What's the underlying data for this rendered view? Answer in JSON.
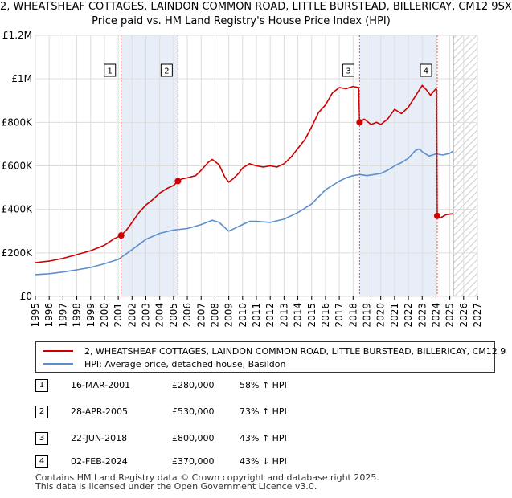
{
  "colors": {
    "price_line": "#cc0000",
    "hpi_line": "#5b8fcc",
    "shade": "#e8eef8",
    "grid": "#dddddd",
    "marker_dash": "#e05050"
  },
  "header": {
    "title_line1": "2, WHEATSHEAF COTTAGES, LAINDON COMMON ROAD, LITTLE BURSTEAD, BILLERICAY, CM12 9SX",
    "title_line2": "Price paid vs. HM Land Registry's House Price Index (HPI)"
  },
  "legend": {
    "price_label": "2, WHEATSHEAF COTTAGES, LAINDON COMMON ROAD, LITTLE BURSTEAD, BILLERICAY, CM12 9",
    "hpi_label": "HPI: Average price, detached house, Basildon"
  },
  "sales": [
    {
      "num": "1",
      "date": "16-MAR-2001",
      "price": "£280,000",
      "hpi": "58% ↑ HPI"
    },
    {
      "num": "2",
      "date": "28-APR-2005",
      "price": "£530,000",
      "hpi": "73% ↑ HPI"
    },
    {
      "num": "3",
      "date": "22-JUN-2018",
      "price": "£800,000",
      "hpi": "43% ↑ HPI"
    },
    {
      "num": "4",
      "date": "02-FEB-2024",
      "price": "£370,000",
      "hpi": "43% ↓ HPI"
    }
  ],
  "footer": {
    "line1": "Contains HM Land Registry data © Crown copyright and database right 2025.",
    "line2": "This data is licensed under the Open Government Licence v3.0."
  },
  "chart_data": {
    "type": "line",
    "title": "Price paid vs. HM Land Registry's House Price Index (HPI)",
    "xlabel": "",
    "ylabel": "",
    "xlim": [
      1995,
      2027
    ],
    "ylim": [
      0,
      1200000
    ],
    "x_ticks": [
      "1995",
      "1996",
      "1997",
      "1998",
      "1999",
      "2000",
      "2001",
      "2002",
      "2003",
      "2004",
      "2005",
      "2006",
      "2007",
      "2008",
      "2009",
      "2010",
      "2011",
      "2012",
      "2013",
      "2014",
      "2015",
      "2016",
      "2017",
      "2018",
      "2019",
      "2020",
      "2021",
      "2022",
      "2023",
      "2024",
      "2025",
      "2026",
      "2027"
    ],
    "y_ticks": [
      {
        "value": 0,
        "label": "£0"
      },
      {
        "value": 200000,
        "label": "£200K"
      },
      {
        "value": 400000,
        "label": "£400K"
      },
      {
        "value": 600000,
        "label": "£600K"
      },
      {
        "value": 800000,
        "label": "£800K"
      },
      {
        "value": 1000000,
        "label": "£1M"
      },
      {
        "value": 1200000,
        "label": "£1.2M"
      }
    ],
    "shaded_ranges": [
      [
        2001.21,
        2005.32
      ],
      [
        2018.47,
        2024.09
      ]
    ],
    "hatched_range": [
      2025.25,
      2027
    ],
    "sale_markers": [
      {
        "label": "1",
        "x": 2001.21,
        "price": 280000
      },
      {
        "label": "2",
        "x": 2005.32,
        "price": 530000
      },
      {
        "label": "3",
        "x": 2018.47,
        "price": 800000
      },
      {
        "label": "4",
        "x": 2024.09,
        "price": 370000
      }
    ],
    "series": [
      {
        "name": "2, WHEATSHEAF COTTAGES, LAINDON COMMON ROAD, LITTLE BURSTEAD, BILLERICAY, CM12 9",
        "x": [
          1995.0,
          1996.0,
          1997.0,
          1998.0,
          1999.0,
          2000.0,
          2000.7,
          2001.21,
          2001.6,
          2002.0,
          2002.5,
          2003.0,
          2003.5,
          2004.0,
          2004.5,
          2005.0,
          2005.32,
          2005.6,
          2006.0,
          2006.6,
          2007.0,
          2007.5,
          2007.8,
          2008.3,
          2008.7,
          2009.0,
          2009.3,
          2009.7,
          2010.0,
          2010.5,
          2011.0,
          2011.5,
          2012.0,
          2012.5,
          2013.0,
          2013.5,
          2014.0,
          2014.5,
          2015.0,
          2015.5,
          2016.0,
          2016.5,
          2017.0,
          2017.5,
          2018.0,
          2018.4,
          2018.47,
          2018.8,
          2019.3,
          2019.7,
          2020.0,
          2020.5,
          2021.0,
          2021.5,
          2022.0,
          2022.5,
          2023.0,
          2023.3,
          2023.6,
          2024.0,
          2024.05,
          2024.09,
          2024.3,
          2024.7,
          2025.0,
          2025.25
        ],
        "values": [
          155000,
          162000,
          175000,
          192000,
          210000,
          235000,
          265000,
          280000,
          305000,
          340000,
          385000,
          420000,
          445000,
          475000,
          495000,
          510000,
          530000,
          540000,
          545000,
          555000,
          580000,
          615000,
          630000,
          605000,
          550000,
          525000,
          540000,
          565000,
          590000,
          610000,
          600000,
          595000,
          600000,
          595000,
          610000,
          640000,
          680000,
          720000,
          780000,
          845000,
          880000,
          935000,
          960000,
          955000,
          965000,
          960000,
          800000,
          815000,
          790000,
          800000,
          790000,
          815000,
          860000,
          840000,
          870000,
          920000,
          970000,
          950000,
          925000,
          955000,
          950000,
          370000,
          360000,
          375000,
          378000,
          380000
        ]
      },
      {
        "name": "HPI: Average price, detached house, Basildon",
        "x": [
          1995.0,
          1996.0,
          1997.0,
          1998.0,
          1999.0,
          2000.0,
          2001.0,
          2002.0,
          2003.0,
          2004.0,
          2005.0,
          2006.0,
          2007.0,
          2007.8,
          2008.3,
          2009.0,
          2009.5,
          2010.0,
          2010.5,
          2011.0,
          2012.0,
          2013.0,
          2014.0,
          2015.0,
          2016.0,
          2017.0,
          2017.5,
          2018.0,
          2018.5,
          2019.0,
          2019.5,
          2020.0,
          2020.5,
          2021.0,
          2021.5,
          2022.0,
          2022.5,
          2022.8,
          2023.0,
          2023.5,
          2024.0,
          2024.5,
          2025.0,
          2025.25
        ],
        "values": [
          100000,
          104000,
          112000,
          122000,
          133000,
          150000,
          170000,
          215000,
          262000,
          290000,
          305000,
          312000,
          330000,
          350000,
          340000,
          300000,
          315000,
          330000,
          345000,
          345000,
          340000,
          355000,
          385000,
          425000,
          490000,
          530000,
          545000,
          555000,
          560000,
          555000,
          560000,
          565000,
          580000,
          600000,
          615000,
          635000,
          670000,
          678000,
          665000,
          645000,
          655000,
          650000,
          658000,
          668000
        ]
      }
    ]
  }
}
